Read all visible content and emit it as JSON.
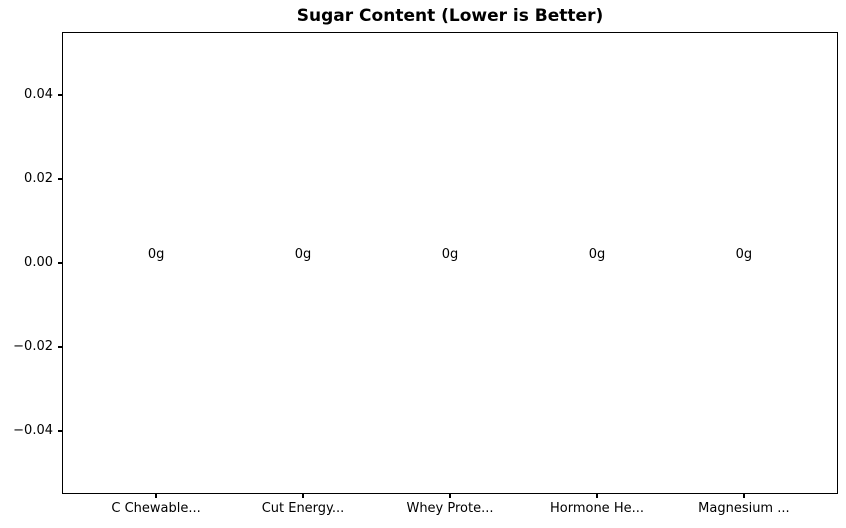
{
  "chart_data": {
    "type": "bar",
    "title": "Sugar Content (Lower is Better)",
    "categories": [
      "C Chewable...",
      "Cut Energy...",
      "Whey Prote...",
      "Hormone He...",
      "Magnesium ..."
    ],
    "values": [
      0,
      0,
      0,
      0,
      0
    ],
    "bar_labels": [
      "0g",
      "0g",
      "0g",
      "0g",
      "0g"
    ],
    "xlabel": "",
    "ylabel": "",
    "xlim": [
      -0.64,
      4.64
    ],
    "ylim": [
      -0.055,
      0.055
    ],
    "yticks": [
      0.04,
      0.02,
      0,
      -0.02,
      -0.04
    ],
    "ytick_labels": [
      "0.04",
      "0.02",
      "0.00",
      "−0.02",
      "−0.04"
    ],
    "grid": false,
    "legend_position": "none",
    "colors": {
      "text": "#000000",
      "spine": "#000000",
      "background": "#ffffff"
    }
  }
}
